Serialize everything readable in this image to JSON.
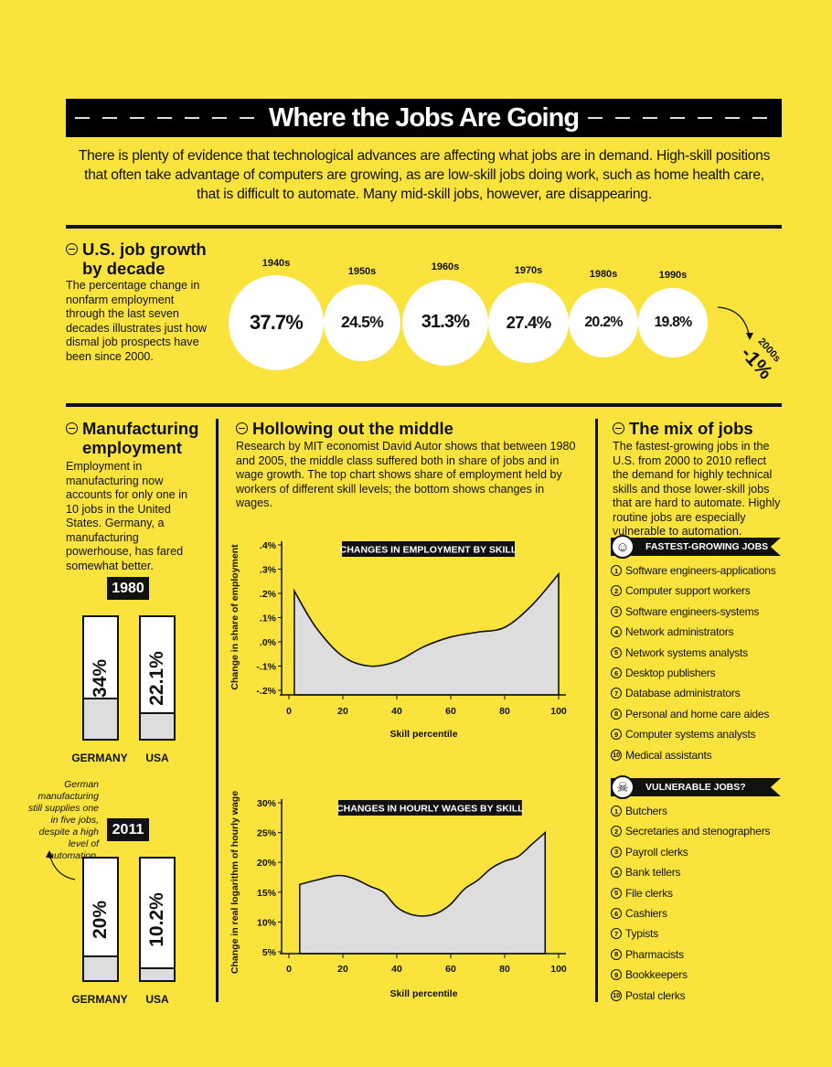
{
  "title": "Where the Jobs Are Going",
  "intro": "There is plenty of evidence that technological advances are affecting what jobs are in demand. High-skill positions that often take advantage of computers are growing, as are low-skill jobs doing work, such as home health care, that is difficult to automate. Many mid-skill jobs, however, are disappearing.",
  "growth": {
    "title": "U.S. job growth by decade",
    "text": "The percentage change in nonfarm employment through the last seven decades illustrates just how dismal job prospects have been since 2000.",
    "decades": [
      {
        "label": "1940s",
        "value": "37.7%",
        "num": 37.7
      },
      {
        "label": "1950s",
        "value": "24.5%",
        "num": 24.5
      },
      {
        "label": "1960s",
        "value": "31.3%",
        "num": 31.3
      },
      {
        "label": "1970s",
        "value": "27.4%",
        "num": 27.4
      },
      {
        "label": "1980s",
        "value": "20.2%",
        "num": 20.2
      },
      {
        "label": "1990s",
        "value": "19.8%",
        "num": 19.8
      }
    ],
    "last": {
      "label": "2000s",
      "value": "-1%"
    }
  },
  "manufacturing": {
    "title": "Manufacturing employment",
    "text": "Employment in manufacturing now accounts for only one in 10 jobs in the United States. Germany, a manufacturing powerhouse, has fared somewhat better.",
    "years": [
      {
        "year": "1980",
        "bars": [
          {
            "country": "GERMANY",
            "value": "34%",
            "num": 34
          },
          {
            "country": "USA",
            "value": "22.1%",
            "num": 22.1
          }
        ]
      },
      {
        "year": "2011",
        "bars": [
          {
            "country": "GERMANY",
            "value": "20%",
            "num": 20
          },
          {
            "country": "USA",
            "value": "10.2%",
            "num": 10.2
          }
        ]
      }
    ],
    "note": "German manufacturing still supplies one in five jobs, despite a high level of automation."
  },
  "hollowing": {
    "title": "Hollowing out the middle",
    "text": "Research by MIT economist David Autor shows that between 1980 and 2005, the middle class suffered both in share of jobs and in wage growth. The top chart shows share of employment held by workers of different skill levels; the bottom shows changes in wages."
  },
  "chart_data": [
    {
      "type": "area",
      "title": "CHANGES IN EMPLOYMENT BY SKILL",
      "xlabel": "Skill percentile",
      "ylabel": "Change in share of employment",
      "xlim": [
        0,
        100
      ],
      "ylim": [
        -0.2,
        0.4
      ],
      "xticks": [
        "0",
        "20",
        "40",
        "60",
        "80",
        "100"
      ],
      "yticks": [
        ".4%",
        ".3%",
        ".2%",
        ".1%",
        ".0%",
        "-.1%",
        "-.2%"
      ],
      "x": [
        2,
        10,
        20,
        30,
        40,
        50,
        60,
        70,
        80,
        90,
        100
      ],
      "y": [
        0.21,
        0.06,
        -0.06,
        -0.1,
        -0.08,
        -0.02,
        0.02,
        0.04,
        0.06,
        0.15,
        0.28
      ]
    },
    {
      "type": "area",
      "title": "CHANGES IN HOURLY WAGES BY SKILL",
      "xlabel": "Skill percentile",
      "ylabel": "Change in real logarithm of hourly wage",
      "xlim": [
        0,
        100
      ],
      "ylim": [
        5,
        30
      ],
      "xticks": [
        "0",
        "20",
        "40",
        "60",
        "80",
        "100"
      ],
      "yticks": [
        "30%",
        "25%",
        "20%",
        "15%",
        "10%",
        "5%"
      ],
      "x": [
        4,
        10,
        18,
        24,
        30,
        35,
        40,
        45,
        50,
        55,
        60,
        65,
        70,
        75,
        80,
        85,
        90,
        95
      ],
      "y": [
        16.3,
        17,
        17.8,
        17.3,
        16,
        15,
        12.5,
        11.3,
        11,
        11.5,
        13,
        15.5,
        17,
        19,
        20.2,
        21,
        23,
        25
      ]
    }
  ],
  "mix": {
    "title": "The mix of jobs",
    "text": "The fastest-growing jobs in the U.S. from 2000 to 2010 reflect the demand for highly technical skills and those lower-skill jobs that are hard to automate. Highly routine jobs are especially vulnerable to automation.",
    "fastest": {
      "label": "FASTEST-GROWING JOBS",
      "icon": "smiley-icon",
      "items": [
        "Software engineers-applications",
        "Computer support workers",
        "Software engineers-systems",
        "Network administrators",
        "Network systems analysts",
        "Desktop publishers",
        "Database administrators",
        "Personal and home care aides",
        "Computer systems analysts",
        "Medical assistants"
      ]
    },
    "vulnerable": {
      "label": "VULNERABLE JOBS?",
      "icon": "skull-icon",
      "items": [
        "Butchers",
        "Secretaries and stenographers",
        "Payroll clerks",
        "Bank tellers",
        "File clerks",
        "Cashiers",
        "Typists",
        "Pharmacists",
        "Bookkeepers",
        "Postal clerks"
      ]
    }
  },
  "colors": {
    "background": "#f9e33c",
    "ink": "#111111",
    "fill": "#dddddd"
  }
}
